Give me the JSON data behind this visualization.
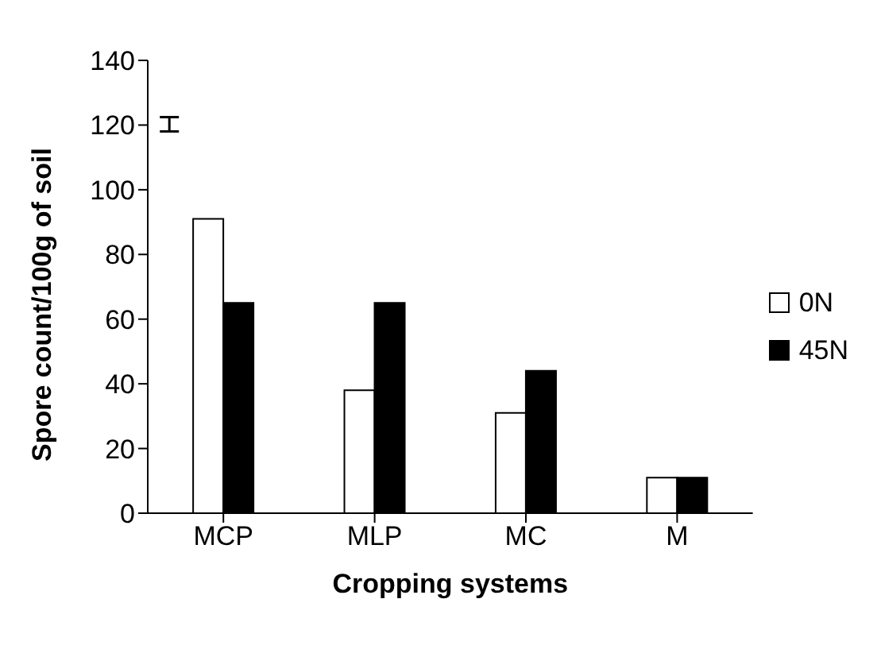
{
  "chart_data": {
    "type": "bar",
    "xlabel": "Cropping systems",
    "ylabel": "Spore count/100g of soil",
    "categories": [
      "MCP",
      "MLP",
      "MC",
      "M"
    ],
    "series": [
      {
        "name": "0N",
        "color": "#ffffff",
        "values": [
          91,
          38,
          31,
          11
        ]
      },
      {
        "name": "45N",
        "color": "#000000",
        "values": [
          65,
          65,
          44,
          11
        ]
      }
    ],
    "ylim": [
      0,
      140
    ],
    "yticks": [
      0,
      20,
      40,
      60,
      80,
      100,
      120,
      140
    ],
    "legend": "right"
  }
}
